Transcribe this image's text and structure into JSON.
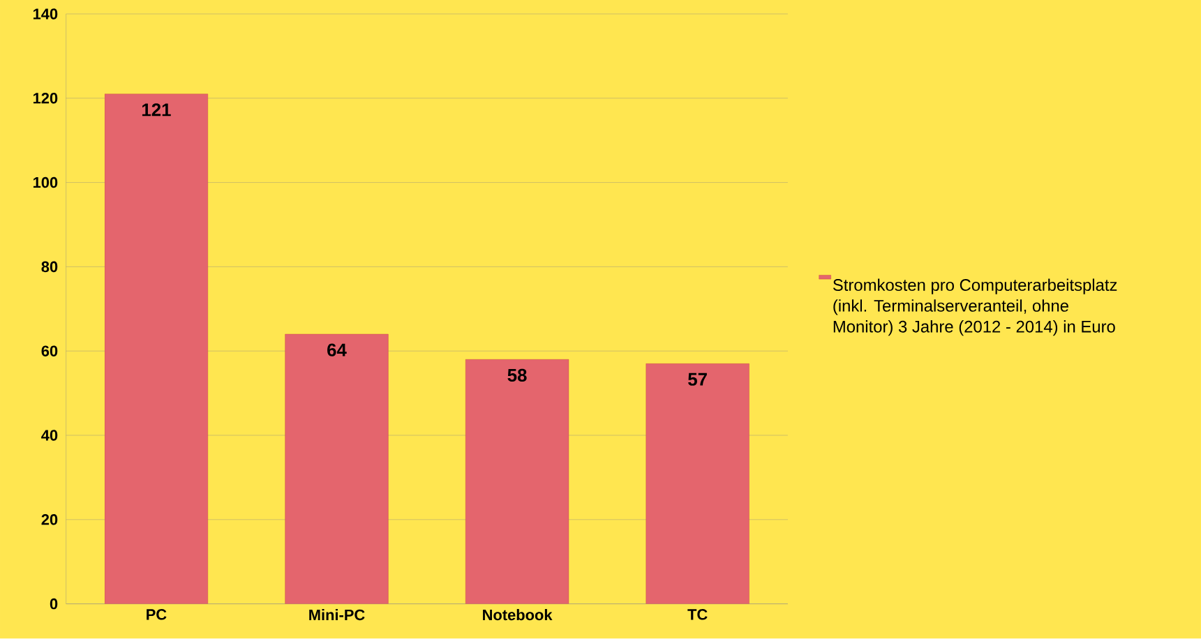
{
  "chart_data": {
    "type": "bar",
    "categories": [
      "PC",
      "Mini-PC",
      "Notebook",
      "TC"
    ],
    "series": [
      {
        "name": "Stromkosten pro Computerarbeitsplatz (inkl. Terminalserveranteil, ohne Monitor) 3 Jahre (2012 - 2014) in Euro",
        "color": "#e4656d",
        "values": [
          121,
          64,
          58,
          57
        ]
      }
    ],
    "ylim": [
      0,
      140
    ],
    "yticks": [
      0,
      20,
      40,
      60,
      80,
      100,
      120,
      140
    ],
    "grid": "y",
    "legend": "right",
    "data_labels": true
  }
}
